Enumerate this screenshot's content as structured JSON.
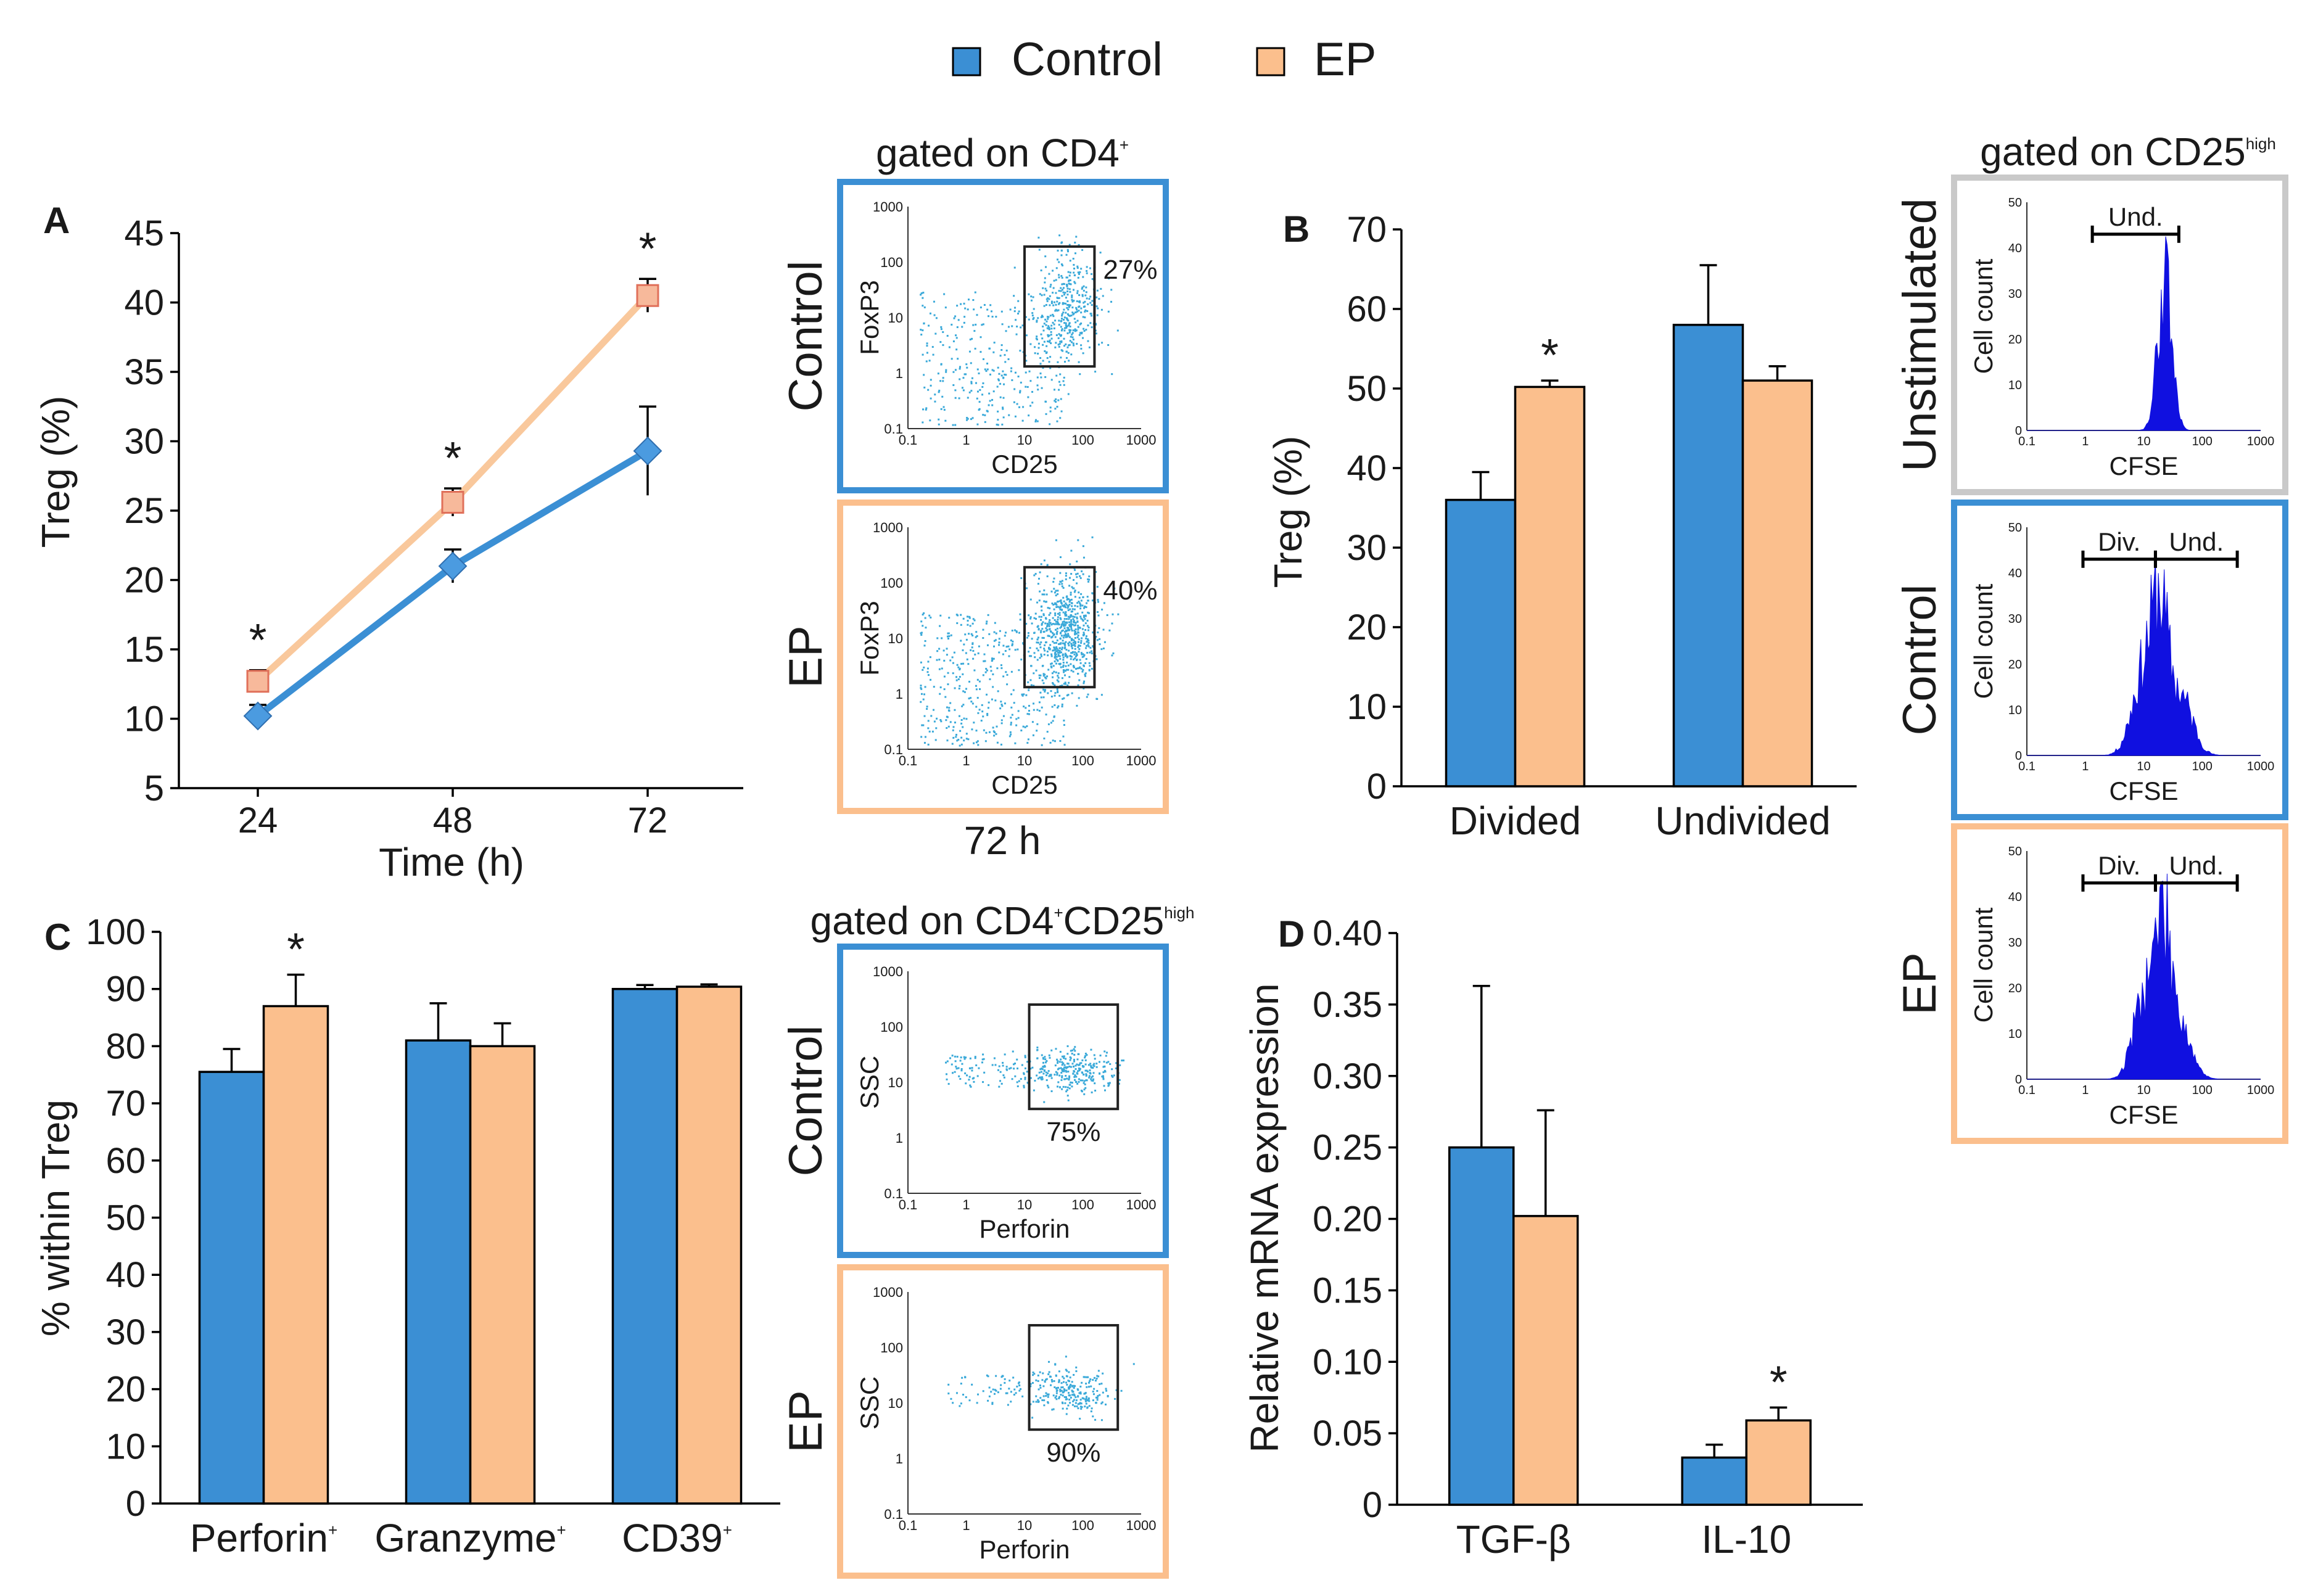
{
  "colors": {
    "control": "#3b8fd4",
    "ep": "#fbbf8d",
    "ep_line": "#f9c89c",
    "ep_marker": "#f7b99b",
    "ep_marker_edge": "#e0705a",
    "control_marker": "#4b9be0",
    "grey_frame": "#c9c9c9"
  },
  "legend": {
    "control": "Control",
    "ep": "EP"
  },
  "chart_data": [
    {
      "panel": "A",
      "type": "line",
      "x": [
        24,
        48,
        72
      ],
      "series": [
        {
          "name": "Control",
          "values": [
            10.2,
            21.0,
            29.3
          ],
          "errors": [
            0.8,
            1.2,
            3.2
          ]
        },
        {
          "name": "EP",
          "values": [
            12.7,
            25.6,
            40.5
          ],
          "errors": [
            0.8,
            1.0,
            1.2
          ]
        }
      ],
      "significant": [
        "*",
        "*",
        "*"
      ],
      "xlabel": "Time (h)",
      "ylabel": "Treg (%)",
      "ylim": [
        5,
        45
      ],
      "yticks": [
        "5",
        "10",
        "15",
        "20",
        "25",
        "30",
        "35",
        "40",
        "45"
      ],
      "xticks": [
        "24",
        "48",
        "72"
      ]
    },
    {
      "panel": "B",
      "type": "bar",
      "categories": [
        "Divided",
        "Undivided"
      ],
      "series": [
        {
          "name": "Control",
          "values": [
            36,
            58
          ],
          "errors": [
            3.5,
            7.5
          ]
        },
        {
          "name": "EP",
          "values": [
            50.2,
            51
          ],
          "errors": [
            0.8,
            1.8
          ]
        }
      ],
      "significant": [
        "*",
        ""
      ],
      "ylabel": "Treg (%)",
      "ylim": [
        0,
        70
      ],
      "yticks": [
        "0",
        "10",
        "20",
        "30",
        "40",
        "50",
        "60",
        "70"
      ]
    },
    {
      "panel": "C",
      "type": "bar",
      "categories": [
        "Perforin",
        "Granzyme",
        "CD39"
      ],
      "category_sup": [
        "+",
        "+",
        "+"
      ],
      "series": [
        {
          "name": "Control",
          "values": [
            75.5,
            81,
            90
          ],
          "errors": [
            4,
            6.5,
            0.7
          ]
        },
        {
          "name": "EP",
          "values": [
            87,
            80,
            90.4
          ],
          "errors": [
            5.5,
            4,
            0.4
          ]
        }
      ],
      "significant": [
        "*",
        "",
        ""
      ],
      "ylabel": "% within Treg",
      "ylim": [
        0,
        100
      ],
      "yticks": [
        "0",
        "10",
        "20",
        "30",
        "40",
        "50",
        "60",
        "70",
        "80",
        "90",
        "100"
      ]
    },
    {
      "panel": "D",
      "type": "bar",
      "categories": [
        "TGF-β",
        "IL-10"
      ],
      "series": [
        {
          "name": "Control",
          "values": [
            0.25,
            0.033
          ],
          "errors": [
            0.113,
            0.009
          ]
        },
        {
          "name": "EP",
          "values": [
            0.202,
            0.059
          ],
          "errors": [
            0.074,
            0.009
          ]
        }
      ],
      "significant": [
        "",
        "*"
      ],
      "ylabel": "Relative mRNA expression",
      "ylim": [
        0,
        0.4
      ],
      "yticks": [
        "0",
        "0.05",
        "0.10",
        "0.15",
        "0.20",
        "0.25",
        "0.30",
        "0.35",
        "0.40"
      ]
    }
  ],
  "flow_a": {
    "title": "gated on CD4",
    "title_sup": "+",
    "footer": "72 h",
    "xlabel": "CD25",
    "ylabel": "FoxP3",
    "ticks": [
      "0.1",
      "1",
      "10",
      "100",
      "1000"
    ],
    "rows": [
      {
        "label": "Control",
        "percent": "27%"
      },
      {
        "label": "EP",
        "percent": "40%"
      }
    ]
  },
  "flow_c": {
    "title": "gated on CD4",
    "title_sup": "+",
    "title2": "CD25",
    "title2_sup": "high",
    "xlabel": "Perforin",
    "ylabel": "SSC",
    "ticks": [
      "0.1",
      "1",
      "10",
      "100",
      "1000"
    ],
    "rows": [
      {
        "label": "Control",
        "percent": "75%"
      },
      {
        "label": "EP",
        "percent": "90%"
      }
    ]
  },
  "hist_b": {
    "title": "gated on CD25",
    "title_sup": "high",
    "xlabel": "CFSE",
    "ylabel": "Cell count",
    "yticks": [
      "0",
      "10",
      "20",
      "30",
      "40",
      "50"
    ],
    "xticks": [
      "0.1",
      "1",
      "10",
      "100",
      "1000"
    ],
    "und": "Und.",
    "div": "Div.",
    "rows": [
      {
        "label": "Unstimulated"
      },
      {
        "label": "Control"
      },
      {
        "label": "EP"
      }
    ]
  }
}
